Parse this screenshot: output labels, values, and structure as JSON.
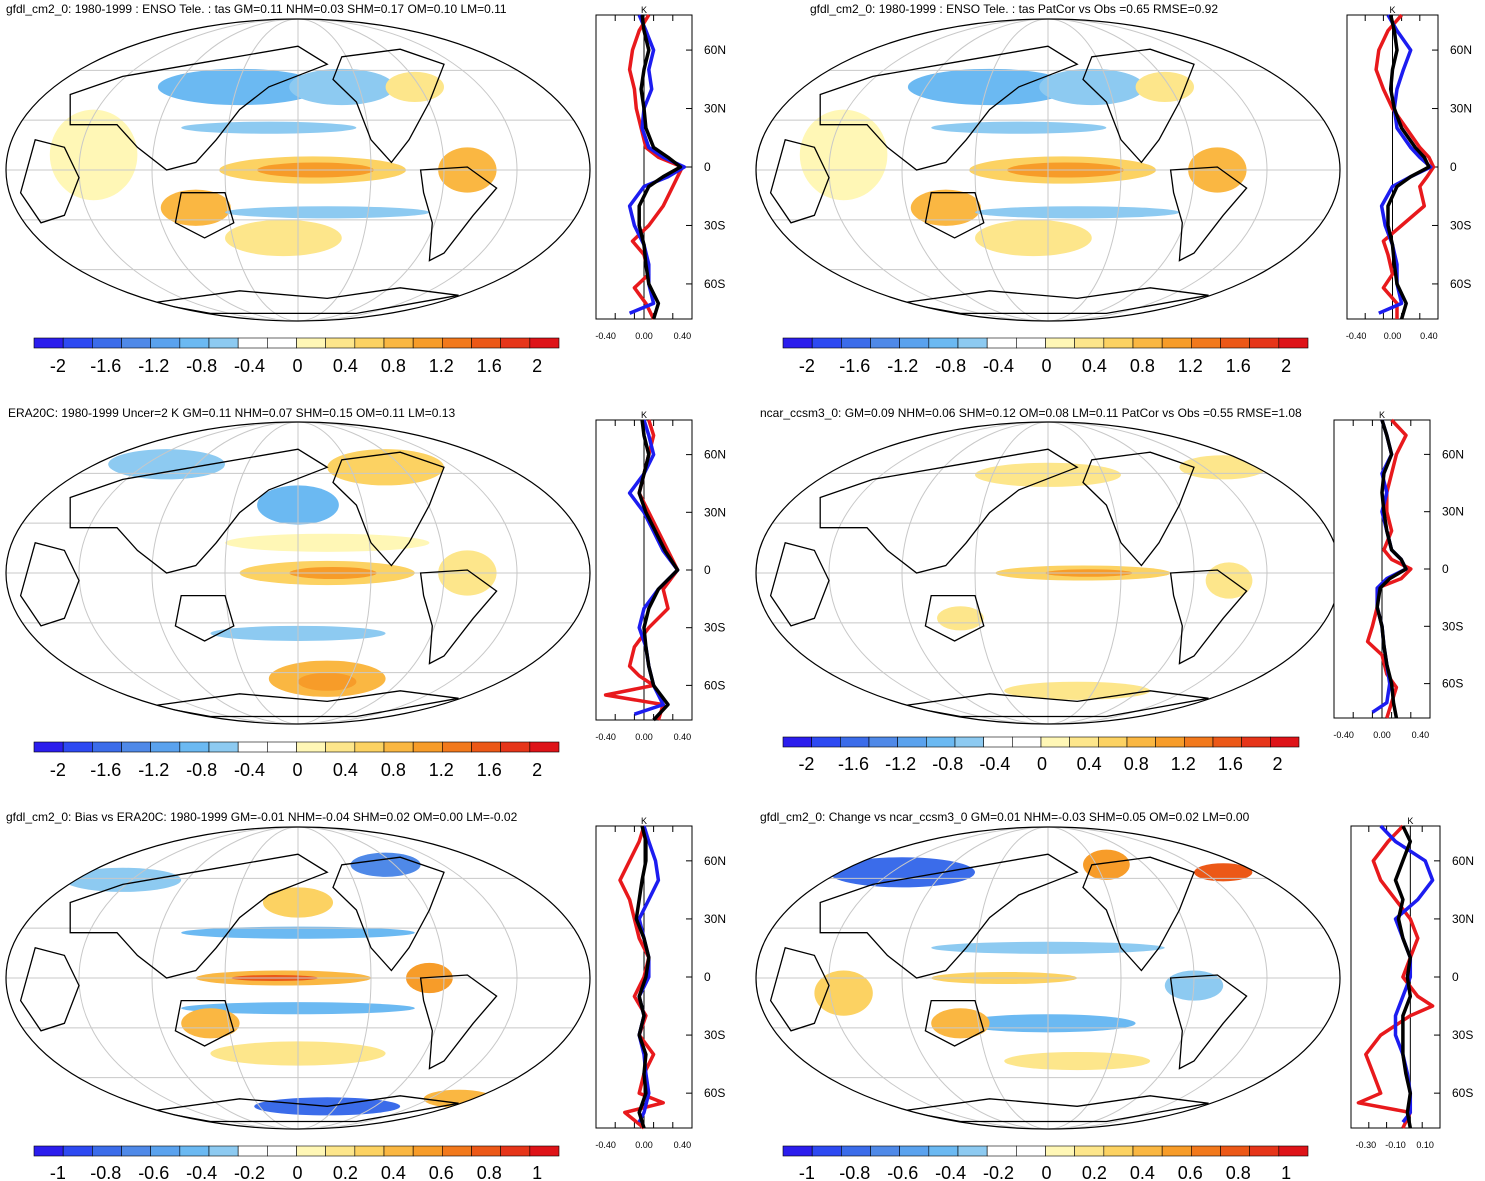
{
  "panels": [
    {
      "title": "gfdl_cm2_0: 1980-1999 : ENSO Tele. : tas GM=0.11 NHM=0.03 SHM=0.17 OM=0.10 LM=0.11",
      "colorbar": {
        "labels": [
          "-2",
          "-1.6",
          "-1.2",
          "-0.8",
          "-0.4",
          "0",
          "0.4",
          "0.8",
          "1.2",
          "1.6",
          "2"
        ]
      },
      "zonal": {
        "units": "K",
        "x_ticks": [
          "-0.40",
          "0.00",
          "0.40"
        ],
        "x_range": [
          -0.5,
          0.5
        ],
        "lat_ticks": [
          "60N",
          "30N",
          "0",
          "30S",
          "60S"
        ],
        "series": [
          {
            "color": "#e8191c",
            "lat": [
              78,
              70,
              60,
              50,
              40,
              30,
              20,
              10,
              5,
              0,
              -5,
              -10,
              -20,
              -30,
              -38,
              -45,
              -55,
              -62,
              -70,
              -78
            ],
            "values": [
              0.05,
              -0.05,
              -0.12,
              -0.15,
              -0.1,
              -0.08,
              -0.03,
              0.02,
              0.15,
              0.4,
              0.35,
              0.3,
              0.2,
              0.05,
              -0.12,
              0.0,
              0.05,
              -0.1,
              0.02,
              0.1
            ]
          },
          {
            "color": "#1c1cf0",
            "lat": [
              78,
              70,
              60,
              50,
              40,
              30,
              20,
              10,
              5,
              0,
              -5,
              -10,
              -20,
              -30,
              -40,
              -50,
              -60,
              -70,
              -75
            ],
            "values": [
              -0.05,
              0.02,
              0.1,
              0.05,
              0.08,
              0.0,
              -0.02,
              0.05,
              0.2,
              0.42,
              0.25,
              0.0,
              -0.15,
              -0.1,
              0.0,
              0.05,
              0.05,
              0.1,
              -0.15
            ]
          },
          {
            "color": "#000000",
            "lat": [
              78,
              70,
              60,
              50,
              40,
              30,
              20,
              10,
              5,
              0,
              -5,
              -10,
              -20,
              -30,
              -40,
              -50,
              -60,
              -70,
              -78
            ],
            "values": [
              -0.02,
              0.0,
              0.05,
              0.0,
              -0.03,
              0.0,
              0.02,
              0.1,
              0.25,
              0.38,
              0.2,
              0.05,
              -0.05,
              -0.05,
              0.0,
              0.02,
              0.05,
              0.15,
              0.1
            ]
          }
        ]
      }
    },
    {
      "title": "gfdl_cm2_0: 1980-1999 : ENSO Tele. : tas PatCor vs Obs =0.65 RMSE=0.92",
      "colorbar": {
        "labels": [
          "-2",
          "-1.6",
          "-1.2",
          "-0.8",
          "-0.4",
          "0",
          "0.4",
          "0.8",
          "1.2",
          "1.6",
          "2"
        ]
      },
      "zonal": {
        "units": "K",
        "x_ticks": [
          "-0.40",
          "0.00",
          "0.40"
        ],
        "x_range": [
          -0.5,
          0.5
        ],
        "lat_ticks": [
          "60N",
          "30N",
          "0",
          "30S",
          "60S"
        ],
        "series": [
          {
            "color": "#e8191c",
            "lat": [
              78,
              70,
              60,
              50,
              40,
              30,
              20,
              10,
              5,
              0,
              -5,
              -10,
              -20,
              -30,
              -38,
              -45,
              -55,
              -62,
              -70,
              -78
            ],
            "values": [
              0.1,
              -0.05,
              -0.15,
              -0.18,
              -0.1,
              0.0,
              0.15,
              0.3,
              0.4,
              0.45,
              0.38,
              0.3,
              0.35,
              0.1,
              -0.1,
              -0.05,
              0.0,
              -0.1,
              0.05,
              0.05
            ]
          },
          {
            "color": "#1c1cf0",
            "lat": [
              78,
              70,
              60,
              50,
              40,
              30,
              20,
              10,
              5,
              0,
              -5,
              -10,
              -20,
              -30,
              -40,
              -50,
              -60,
              -70,
              -75
            ],
            "values": [
              -0.05,
              0.05,
              0.2,
              0.12,
              0.05,
              0.02,
              0.05,
              0.2,
              0.3,
              0.42,
              0.2,
              0.0,
              -0.12,
              -0.08,
              0.0,
              0.05,
              0.05,
              0.1,
              -0.15
            ]
          },
          {
            "color": "#000000",
            "lat": [
              78,
              70,
              60,
              50,
              40,
              30,
              20,
              10,
              5,
              0,
              -5,
              -10,
              -20,
              -30,
              -40,
              -50,
              -60,
              -70,
              -78
            ],
            "values": [
              -0.02,
              0.02,
              0.05,
              0.0,
              -0.02,
              0.02,
              0.1,
              0.25,
              0.35,
              0.4,
              0.2,
              0.05,
              -0.05,
              -0.05,
              0.0,
              0.02,
              0.05,
              0.15,
              0.1
            ]
          }
        ]
      }
    },
    {
      "title": "ERA20C: 1980-1999 Uncer=2 K GM=0.11 NHM=0.07 SHM=0.15 OM=0.11 LM=0.13",
      "colorbar": {
        "labels": [
          "-2",
          "-1.6",
          "-1.2",
          "-0.8",
          "-0.4",
          "0",
          "0.4",
          "0.8",
          "1.2",
          "1.6",
          "2"
        ]
      },
      "zonal": {
        "units": "K",
        "x_ticks": [
          "-0.40",
          "0.00",
          "0.40"
        ],
        "x_range": [
          -0.5,
          0.5
        ],
        "lat_ticks": [
          "60N",
          "30N",
          "0",
          "30S",
          "60S"
        ],
        "series": [
          {
            "color": "#e8191c",
            "lat": [
              78,
              70,
              60,
              50,
              40,
              30,
              20,
              10,
              0,
              -10,
              -20,
              -30,
              -40,
              -50,
              -55,
              -60,
              -65,
              -70,
              -78
            ],
            "values": [
              0.05,
              0.1,
              0.05,
              0.0,
              -0.05,
              0.05,
              0.15,
              0.25,
              0.35,
              0.2,
              0.25,
              0.05,
              -0.1,
              -0.15,
              -0.05,
              0.1,
              -0.4,
              0.2,
              0.15
            ]
          },
          {
            "color": "#1c1cf0",
            "lat": [
              78,
              70,
              60,
              50,
              40,
              30,
              20,
              10,
              0,
              -10,
              -20,
              -30,
              -40,
              -50,
              -60,
              -70,
              -75
            ],
            "values": [
              0.0,
              0.05,
              0.1,
              0.0,
              -0.15,
              0.0,
              0.1,
              0.2,
              0.35,
              0.15,
              0.0,
              -0.05,
              0.02,
              0.05,
              0.1,
              0.2,
              -0.1
            ]
          },
          {
            "color": "#000000",
            "lat": [
              78,
              70,
              60,
              50,
              40,
              30,
              20,
              10,
              0,
              -10,
              -20,
              -30,
              -40,
              -50,
              -60,
              -70,
              -78
            ],
            "values": [
              -0.02,
              0.0,
              0.05,
              0.0,
              -0.05,
              0.02,
              0.12,
              0.22,
              0.35,
              0.15,
              0.05,
              0.0,
              0.02,
              0.05,
              0.1,
              0.25,
              0.1
            ]
          }
        ]
      }
    },
    {
      "title": "ncar_ccsm3_0: GM=0.09 NHM=0.06 SHM=0.12 OM=0.08 LM=0.11 PatCor vs Obs =0.55 RMSE=1.08",
      "colorbar": {
        "labels": [
          "-2",
          "-1.6",
          "-1.2",
          "-0.8",
          "-0.4",
          "0",
          "0.4",
          "0.8",
          "1.2",
          "1.6",
          "2"
        ]
      },
      "zonal": {
        "units": "K",
        "x_ticks": [
          "-0.40",
          "0.00",
          "0.40"
        ],
        "x_range": [
          -0.5,
          0.5
        ],
        "lat_ticks": [
          "60N",
          "30N",
          "0",
          "30S",
          "60S"
        ],
        "series": [
          {
            "color": "#e8191c",
            "lat": [
              78,
              70,
              60,
              50,
              40,
              30,
              20,
              10,
              5,
              0,
              -5,
              -10,
              -20,
              -30,
              -38,
              -45,
              -55,
              -62,
              -70,
              -78
            ],
            "values": [
              0.1,
              0.25,
              0.15,
              0.1,
              0.05,
              0.05,
              0.1,
              0.02,
              0.1,
              0.3,
              0.2,
              -0.05,
              -0.05,
              -0.1,
              -0.15,
              0.0,
              0.05,
              0.15,
              0.1,
              0.05
            ]
          },
          {
            "color": "#1c1cf0",
            "lat": [
              78,
              70,
              60,
              50,
              40,
              30,
              20,
              10,
              5,
              0,
              -5,
              -10,
              -20,
              -30,
              -40,
              -50,
              -60,
              -70,
              -75
            ],
            "values": [
              0.0,
              0.05,
              0.1,
              0.0,
              0.05,
              0.0,
              0.05,
              0.1,
              0.2,
              0.25,
              0.05,
              -0.05,
              -0.05,
              0.0,
              0.02,
              0.05,
              0.08,
              0.05,
              -0.1
            ]
          },
          {
            "color": "#000000",
            "lat": [
              78,
              70,
              60,
              50,
              40,
              30,
              20,
              10,
              5,
              0,
              -5,
              -10,
              -20,
              -30,
              -40,
              -50,
              -60,
              -70,
              -78
            ],
            "values": [
              0.0,
              0.05,
              0.1,
              0.02,
              0.0,
              0.02,
              0.05,
              0.1,
              0.2,
              0.25,
              0.08,
              -0.02,
              -0.05,
              0.0,
              0.02,
              0.05,
              0.1,
              0.12,
              0.15
            ]
          }
        ]
      }
    },
    {
      "title": "gfdl_cm2_0: Bias vs ERA20C: 1980-1999 GM=-0.01 NHM=-0.04 SHM=0.02 OM=0.00 LM=-0.02",
      "colorbar": {
        "labels": [
          "-1",
          "-0.8",
          "-0.6",
          "-0.4",
          "-0.2",
          "0",
          "0.2",
          "0.4",
          "0.6",
          "0.8",
          "1"
        ]
      },
      "zonal": {
        "units": "K",
        "x_ticks": [
          "-0.40",
          "0.00",
          "0.40"
        ],
        "x_range": [
          -0.5,
          0.5
        ],
        "lat_ticks": [
          "60N",
          "30N",
          "0",
          "30S",
          "60S"
        ],
        "series": [
          {
            "color": "#e8191c",
            "lat": [
              78,
              70,
              60,
              50,
              40,
              30,
              20,
              10,
              0,
              -10,
              -20,
              -30,
              -40,
              -50,
              -60,
              -65,
              -70,
              -78
            ],
            "values": [
              0.0,
              -0.05,
              -0.15,
              -0.25,
              -0.15,
              -0.1,
              -0.05,
              0.05,
              0.0,
              -0.1,
              0.02,
              -0.05,
              0.1,
              0.0,
              -0.05,
              0.2,
              -0.2,
              0.0
            ]
          },
          {
            "color": "#1c1cf0",
            "lat": [
              78,
              70,
              60,
              50,
              40,
              30,
              20,
              10,
              0,
              -10,
              -20,
              -30,
              -40,
              -50,
              -60,
              -70,
              -75
            ],
            "values": [
              0.0,
              0.05,
              0.12,
              0.15,
              0.05,
              -0.05,
              0.0,
              0.05,
              0.05,
              -0.05,
              0.0,
              -0.05,
              0.0,
              0.02,
              0.05,
              0.0,
              -0.05
            ]
          },
          {
            "color": "#000000",
            "lat": [
              78,
              70,
              60,
              50,
              40,
              30,
              20,
              10,
              0,
              -10,
              -20,
              -30,
              -40,
              -50,
              -60,
              -70,
              -78
            ],
            "values": [
              -0.02,
              0.02,
              0.02,
              -0.02,
              -0.05,
              -0.08,
              0.0,
              0.05,
              0.02,
              -0.05,
              0.0,
              -0.05,
              0.02,
              0.0,
              0.02,
              -0.05,
              0.0
            ]
          }
        ]
      }
    },
    {
      "title": "gfdl_cm2_0: Change vs ncar_ccsm3_0 GM=0.01 NHM=-0.03 SHM=0.05 OM=0.02 LM=0.00",
      "colorbar": {
        "labels": [
          "-1",
          "-0.8",
          "-0.6",
          "-0.4",
          "-0.2",
          "0",
          "0.2",
          "0.4",
          "0.6",
          "0.8",
          "1"
        ]
      },
      "zonal": {
        "units": "K",
        "x_ticks": [
          "-0.30",
          "-0.10",
          "0.10"
        ],
        "x_range": [
          -0.4,
          0.2
        ],
        "lat_ticks": [
          "60N",
          "30N",
          "0",
          "30S",
          "60S"
        ],
        "series": [
          {
            "color": "#e8191c",
            "lat": [
              78,
              70,
              60,
              50,
              40,
              30,
              20,
              10,
              0,
              -10,
              -15,
              -20,
              -30,
              -40,
              -50,
              -60,
              -65,
              -70,
              -78
            ],
            "values": [
              -0.05,
              -0.15,
              -0.25,
              -0.2,
              -0.1,
              0.0,
              0.05,
              0.0,
              -0.05,
              0.05,
              0.15,
              0.0,
              -0.2,
              -0.3,
              -0.25,
              -0.2,
              -0.35,
              0.0,
              -0.05
            ]
          },
          {
            "color": "#1c1cf0",
            "lat": [
              78,
              70,
              60,
              50,
              40,
              30,
              20,
              10,
              0,
              -10,
              -20,
              -30,
              -40,
              -50,
              -60,
              -70,
              -75
            ],
            "values": [
              -0.2,
              -0.1,
              0.1,
              0.15,
              0.05,
              -0.1,
              -0.05,
              0.0,
              0.0,
              -0.05,
              -0.1,
              -0.1,
              -0.05,
              -0.02,
              0.0,
              0.0,
              -0.05
            ]
          },
          {
            "color": "#000000",
            "lat": [
              78,
              70,
              60,
              50,
              40,
              30,
              20,
              10,
              0,
              -10,
              -20,
              -30,
              -40,
              -50,
              -60,
              -70,
              -78
            ],
            "values": [
              -0.05,
              0.0,
              -0.05,
              -0.1,
              -0.05,
              -0.08,
              -0.05,
              0.0,
              -0.02,
              0.0,
              -0.05,
              -0.05,
              -0.05,
              -0.03,
              0.0,
              -0.02,
              0.0
            ]
          }
        ]
      }
    }
  ],
  "colors": {
    "colorbar": [
      "#2b1ded",
      "#2d49f2",
      "#3b6cea",
      "#4f89e8",
      "#5aa2ee",
      "#6bb9f2",
      "#8dcaf1",
      "#ffffff",
      "#ffffff",
      "#fff7b6",
      "#fde68b",
      "#fcd262",
      "#fab742",
      "#f79c29",
      "#f2791c",
      "#ec5817",
      "#e63519",
      "#de1318"
    ],
    "land_outline": "#000000",
    "grid": "#c8c8c8"
  }
}
